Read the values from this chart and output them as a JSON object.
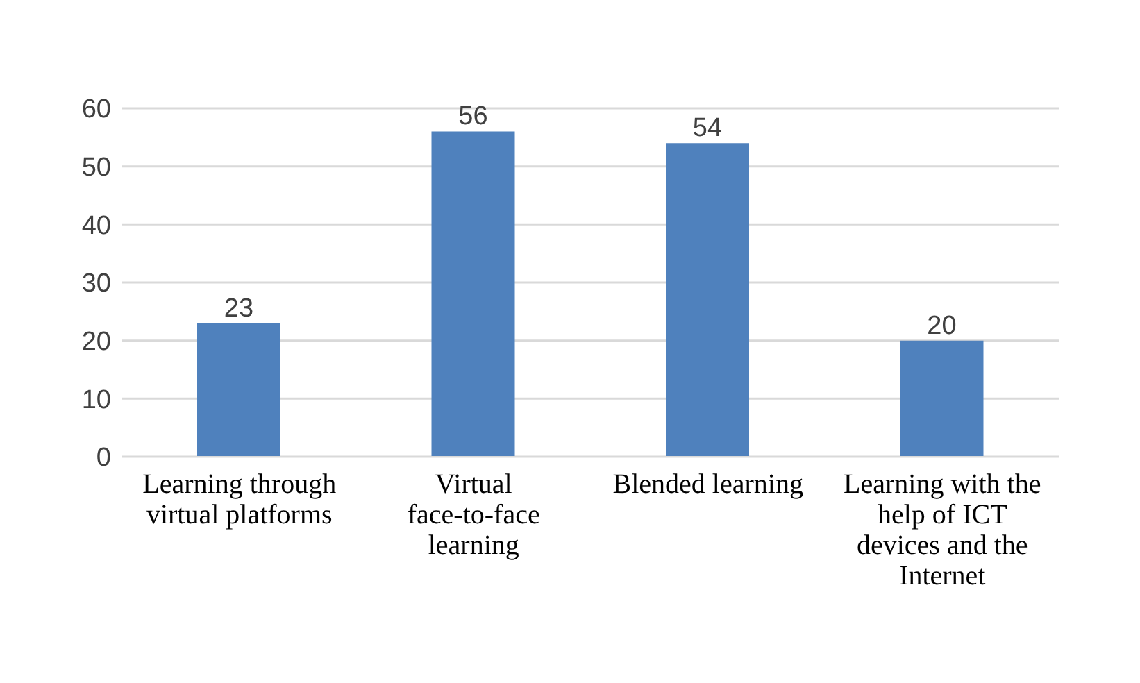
{
  "chart_data": {
    "type": "bar",
    "categories": [
      "Learning through virtual platforms",
      "Virtual face-to-face learning",
      "Blended learning",
      "Learning with the help of ICT devices and the Internet"
    ],
    "values": [
      23,
      56,
      54,
      20
    ],
    "color": "#4f81bd",
    "ylim": [
      0,
      60
    ],
    "yticks": [
      0,
      10,
      20,
      30,
      40,
      50,
      60
    ],
    "grid": "y",
    "data_labels": true
  }
}
